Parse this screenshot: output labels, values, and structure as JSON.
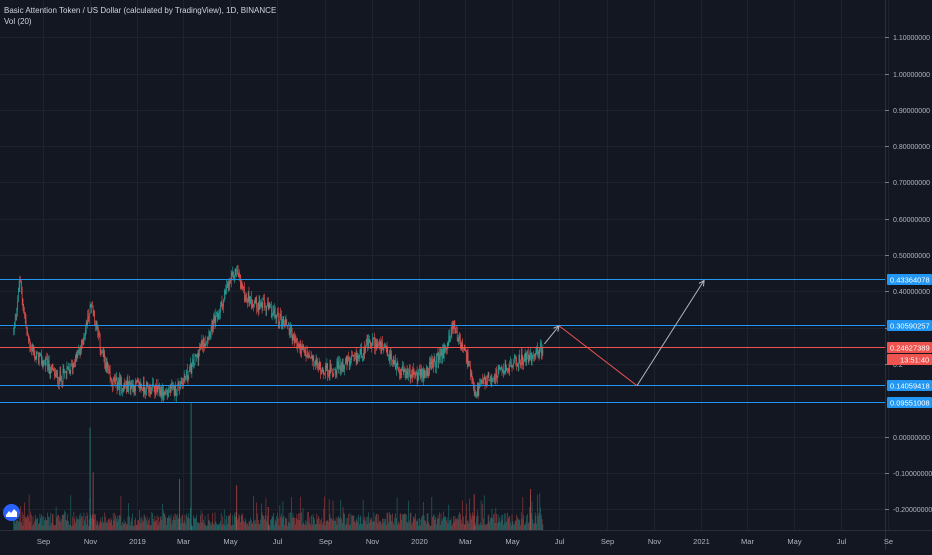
{
  "header": {
    "symbol_title": "Basic Attention Token / US Dollar (calculated by TradingView), 1D, BINANCE",
    "indicator": "Vol (20)"
  },
  "colors": {
    "background": "#131722",
    "grid": "#1e222d",
    "up": "#26a69a",
    "down": "#ef5350",
    "line_blue": "#2196f3",
    "line_red": "#ef5350",
    "projection_up": "#b2b5be",
    "projection_down": "#ef5350",
    "axis_text": "#b2b5be"
  },
  "chart_data": {
    "type": "candlestick",
    "title": "Basic Attention Token / US Dollar (calculated by TradingView), 1D, BINANCE",
    "x_axis": {
      "ticks": [
        "Sep",
        "Nov",
        "2019",
        "Mar",
        "May",
        "Jul",
        "Sep",
        "Nov",
        "2020",
        "Mar",
        "May",
        "Jul",
        "Sep",
        "Nov",
        "2021",
        "Mar",
        "May",
        "Jul",
        "Se"
      ]
    },
    "y_axis": {
      "ticks": [
        1.1,
        1.0,
        0.9,
        0.8,
        0.7,
        0.6,
        0.5,
        0.4,
        0.3,
        0.2,
        0.0,
        -0.1,
        -0.2
      ],
      "tick_labels": [
        "1.10000000",
        "1.00000000",
        "0.90000000",
        "0.80000000",
        "0.70000000",
        "0.60000000",
        "0.50000000",
        "0.40000000",
        "0.30000000",
        "0.2",
        "0.00000000",
        "-0.10000000",
        "-0.20000000"
      ],
      "ylim": [
        -0.22,
        1.13
      ]
    },
    "price_path": [
      [
        "2018-07-25",
        0.29
      ],
      [
        "2018-08-02",
        0.43
      ],
      [
        "2018-08-12",
        0.27
      ],
      [
        "2018-08-22",
        0.22
      ],
      [
        "2018-09-05",
        0.2
      ],
      [
        "2018-09-20",
        0.16
      ],
      [
        "2018-10-05",
        0.18
      ],
      [
        "2018-10-20",
        0.24
      ],
      [
        "2018-11-03",
        0.37
      ],
      [
        "2018-11-15",
        0.24
      ],
      [
        "2018-11-28",
        0.15
      ],
      [
        "2018-12-15",
        0.14
      ],
      [
        "2019-01-01",
        0.14
      ],
      [
        "2019-01-20",
        0.13
      ],
      [
        "2019-02-05",
        0.12
      ],
      [
        "2019-02-20",
        0.13
      ],
      [
        "2019-03-10",
        0.18
      ],
      [
        "2019-03-28",
        0.26
      ],
      [
        "2019-04-15",
        0.33
      ],
      [
        "2019-04-28",
        0.41
      ],
      [
        "2019-05-10",
        0.46
      ],
      [
        "2019-05-20",
        0.39
      ],
      [
        "2019-06-01",
        0.37
      ],
      [
        "2019-06-15",
        0.36
      ],
      [
        "2019-07-01",
        0.33
      ],
      [
        "2019-07-15",
        0.31
      ],
      [
        "2019-07-25",
        0.26
      ],
      [
        "2019-08-10",
        0.22
      ],
      [
        "2019-08-25",
        0.19
      ],
      [
        "2019-09-10",
        0.18
      ],
      [
        "2019-09-25",
        0.2
      ],
      [
        "2019-10-10",
        0.21
      ],
      [
        "2019-10-25",
        0.25
      ],
      [
        "2019-11-05",
        0.26
      ],
      [
        "2019-11-20",
        0.23
      ],
      [
        "2019-12-05",
        0.19
      ],
      [
        "2019-12-20",
        0.17
      ],
      [
        "2020-01-05",
        0.17
      ],
      [
        "2020-01-20",
        0.2
      ],
      [
        "2020-02-05",
        0.24
      ],
      [
        "2020-02-15",
        0.31
      ],
      [
        "2020-02-25",
        0.25
      ],
      [
        "2020-03-05",
        0.21
      ],
      [
        "2020-03-13",
        0.11
      ],
      [
        "2020-03-25",
        0.15
      ],
      [
        "2020-04-10",
        0.17
      ],
      [
        "2020-04-25",
        0.19
      ],
      [
        "2020-05-10",
        0.21
      ],
      [
        "2020-05-25",
        0.22
      ],
      [
        "2020-06-10",
        0.2462
      ]
    ],
    "volume": {
      "scale_note": "relative",
      "spikes": [
        [
          "2018-11-01",
          0.8
        ],
        [
          "2018-11-05",
          0.45
        ],
        [
          "2019-02-25",
          0.4
        ],
        [
          "2019-03-12",
          1.0
        ],
        [
          "2019-05-10",
          0.35
        ],
        [
          "2019-06-20",
          0.18
        ],
        [
          "2020-03-13",
          0.28
        ],
        [
          "2020-05-25",
          0.32
        ]
      ]
    },
    "horizontal_lines": [
      {
        "price": 0.43364078,
        "label": "0.43364078",
        "color": "#2196f3"
      },
      {
        "price": 0.30590257,
        "label": "0.30590257",
        "color": "#2196f3"
      },
      {
        "price": 0.24627389,
        "label": "0.24627389",
        "color": "#ef5350"
      },
      {
        "price": 0.14059418,
        "label": "0.14059418",
        "color": "#2196f3"
      },
      {
        "price": 0.09551008,
        "label": "0.09551008",
        "color": "#2196f3"
      }
    ],
    "current_price": {
      "value": "0.24627389",
      "countdown": "13:51:40"
    },
    "projection": [
      {
        "from": [
          "2020-06-12",
          0.255
        ],
        "to": [
          "2020-07-01",
          0.305
        ],
        "color": "#b2b5be",
        "arrow": true
      },
      {
        "from": [
          "2020-07-01",
          0.305
        ],
        "to": [
          "2020-10-10",
          0.14
        ],
        "color": "#ef5350",
        "arrow": false
      },
      {
        "from": [
          "2020-10-10",
          0.14
        ],
        "to": [
          "2021-01-05",
          0.43
        ],
        "color": "#b2b5be",
        "arrow": true
      }
    ]
  }
}
